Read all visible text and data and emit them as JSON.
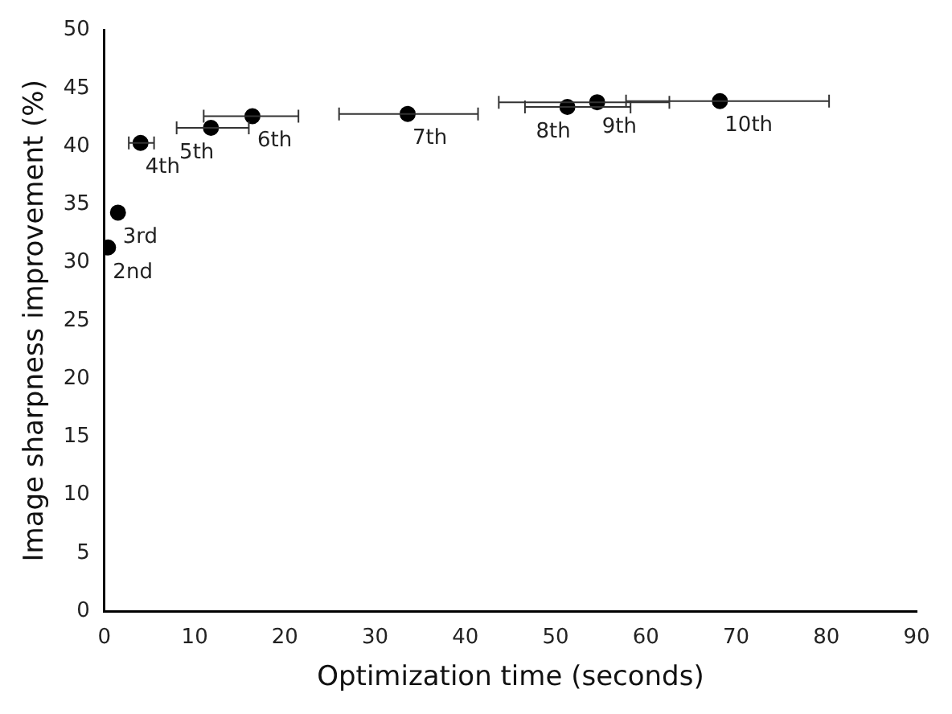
{
  "chart_data": {
    "type": "scatter",
    "xlabel": "Optimization time (seconds)",
    "ylabel": "Image sharpness improvement (%)",
    "series": [
      {
        "color": "#000000",
        "x": [
          0.4,
          1.5,
          4.0,
          11.8,
          16.4,
          33.6,
          51.3,
          54.6,
          68.2
        ],
        "values": [
          31.3,
          34.3,
          40.3,
          41.6,
          42.6,
          42.8,
          43.4,
          43.8,
          43.9
        ],
        "xerrors": [
          null,
          null,
          [
            2.7,
            5.5
          ],
          [
            8.0,
            16.0
          ],
          [
            11.0,
            21.5
          ],
          [
            26.0,
            41.4
          ],
          [
            46.6,
            58.3
          ],
          [
            43.7,
            62.6
          ],
          [
            57.8,
            80.3
          ]
        ]
      }
    ],
    "annotations": [
      {
        "text": "2nd",
        "x": 0.4,
        "y": 31.3
      },
      {
        "text": "3rd",
        "x": 1.5,
        "y": 34.3
      },
      {
        "text": "4th",
        "x": 4.0,
        "y": 40.3
      },
      {
        "text": "5th",
        "x": 11.8,
        "y": 41.6
      },
      {
        "text": "6th",
        "x": 16.4,
        "y": 42.6
      },
      {
        "text": "7th",
        "x": 33.6,
        "y": 42.8
      },
      {
        "text": "8th",
        "x": 51.3,
        "y": 43.4
      },
      {
        "text": "9th",
        "x": 54.6,
        "y": 43.8
      },
      {
        "text": "10th",
        "x": 68.2,
        "y": 43.9
      }
    ],
    "xlim": [
      0,
      90
    ],
    "xticks": [
      0,
      10,
      20,
      30,
      40,
      50,
      60,
      70,
      80,
      90
    ],
    "ylim": [
      0,
      50
    ],
    "yticks": [
      0,
      5,
      10,
      15,
      20,
      25,
      30,
      35,
      40,
      45,
      50
    ],
    "grid": false,
    "legend": false,
    "marker": "circle"
  }
}
